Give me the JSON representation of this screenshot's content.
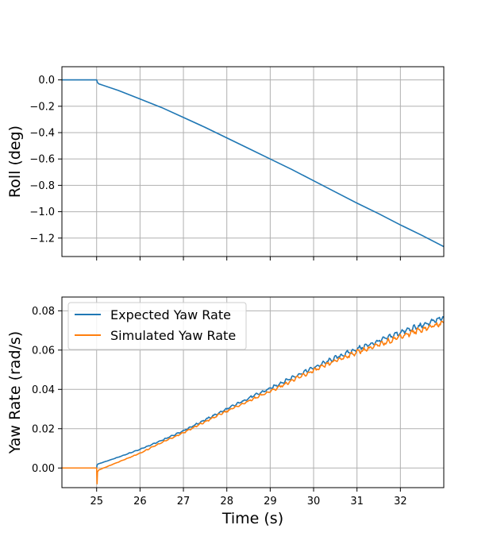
{
  "colors": {
    "expected": "#1f77b4",
    "simulated": "#ff7f0e",
    "grid": "#b0b0b0",
    "axes": "#000000"
  },
  "chart_data": [
    {
      "type": "line",
      "xlabel": "",
      "ylabel": "Roll (deg)",
      "xlim": [
        24.2,
        33.0
      ],
      "ylim": [
        -1.34,
        0.1
      ],
      "grid": true,
      "xticks": [
        25,
        26,
        27,
        28,
        29,
        30,
        31,
        32
      ],
      "xtick_labels_visible": false,
      "yticks": [
        0.0,
        -0.2,
        -0.4,
        -0.6,
        -0.8,
        -1.0,
        -1.2
      ],
      "ytick_labels": [
        "0.0",
        "−0.2",
        "−0.4",
        "−0.6",
        "−0.8",
        "−1.0",
        "−1.2"
      ],
      "series": [
        {
          "color": "#1f77b4",
          "x": [
            24.2,
            25.0,
            25.02,
            25.05,
            25.5,
            26.0,
            26.5,
            27.0,
            27.5,
            28.0,
            28.5,
            29.0,
            29.5,
            30.0,
            30.5,
            31.0,
            31.5,
            32.0,
            32.5,
            33.0
          ],
          "y": [
            0.0,
            0.0,
            -0.02,
            -0.03,
            -0.08,
            -0.145,
            -0.21,
            -0.285,
            -0.36,
            -0.44,
            -0.52,
            -0.6,
            -0.68,
            -0.765,
            -0.85,
            -0.935,
            -1.015,
            -1.1,
            -1.18,
            -1.265
          ]
        }
      ]
    },
    {
      "type": "line",
      "xlabel": "Time (s)",
      "ylabel": "Yaw Rate (rad/s)",
      "xlim": [
        24.2,
        33.0
      ],
      "ylim": [
        -0.01,
        0.087
      ],
      "grid": true,
      "legend": "top-left",
      "xticks": [
        25,
        26,
        27,
        28,
        29,
        30,
        31,
        32
      ],
      "xtick_labels": [
        "25",
        "26",
        "27",
        "28",
        "29",
        "30",
        "31",
        "32"
      ],
      "yticks": [
        0.0,
        0.02,
        0.04,
        0.06,
        0.08
      ],
      "ytick_labels": [
        "0.00",
        "0.02",
        "0.04",
        "0.06",
        "0.08"
      ],
      "series": [
        {
          "name": "Expected Yaw Rate",
          "color": "#1f77b4",
          "x": [
            24.2,
            25.0,
            25.01,
            25.03,
            25.5,
            26.0,
            26.5,
            27.0,
            27.5,
            28.0,
            28.5,
            29.0,
            29.5,
            30.0,
            30.5,
            31.0,
            31.5,
            32.0,
            32.5,
            33.0
          ],
          "y": [
            0.0,
            0.0,
            0.0015,
            0.002,
            0.0055,
            0.0095,
            0.014,
            0.019,
            0.0245,
            0.03,
            0.0355,
            0.0405,
            0.046,
            0.051,
            0.056,
            0.0605,
            0.0645,
            0.069,
            0.0725,
            0.0765
          ]
        },
        {
          "name": "Simulated Yaw Rate",
          "color": "#ff7f0e",
          "x": [
            24.2,
            25.0,
            25.01,
            25.02,
            25.05,
            25.5,
            26.0,
            26.5,
            27.0,
            27.5,
            28.0,
            28.5,
            29.0,
            29.5,
            30.0,
            30.5,
            31.0,
            31.5,
            32.0,
            32.5,
            33.0
          ],
          "y": [
            0.0,
            0.0,
            -0.008,
            -0.002,
            -0.001,
            0.003,
            0.0075,
            0.013,
            0.018,
            0.0235,
            0.029,
            0.034,
            0.039,
            0.0445,
            0.0495,
            0.0545,
            0.059,
            0.0625,
            0.067,
            0.0705,
            0.074
          ]
        }
      ]
    }
  ]
}
